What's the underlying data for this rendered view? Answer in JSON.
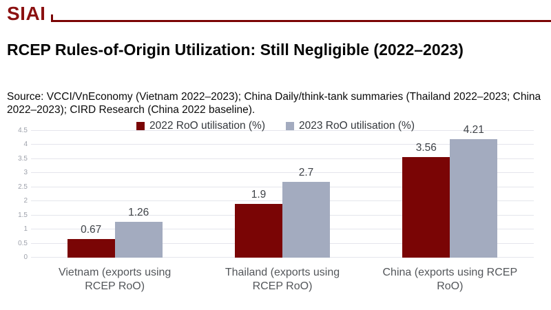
{
  "header": {
    "logo_text": "SIAI"
  },
  "title": "RCEP Rules-of-Origin Utilization: Still Negligible (2022–2023)",
  "source_note": "Source: VCCI/VnEconomy (Vietnam 2022–2023); China Daily/think-tank summaries (Thailand 2022–2023; China 2022–2023); CIRD Research (China 2022 baseline).",
  "colors": {
    "brand_red": "#8B1111",
    "rule_red": "#7A0404",
    "series_2022": "#7A0505",
    "series_2023": "#A3ABBF",
    "gridline": "#E4E5EC",
    "tick_label": "#9DA1AB",
    "value_label": "#3E4247",
    "category_label": "#53565A"
  },
  "chart_data": {
    "type": "bar",
    "title": "RCEP Rules-of-Origin Utilization: Still Negligible (2022–2023)",
    "categories": [
      "Vietnam (exports using RCEP RoO)",
      "Thailand (exports using RCEP RoO)",
      "China (exports using RCEP RoO)"
    ],
    "series": [
      {
        "name": "2022 RoO utilisation (%)",
        "color": "#7A0505",
        "values": [
          0.67,
          1.9,
          3.56
        ],
        "labels": [
          "0.67",
          "1.9",
          "3.56"
        ]
      },
      {
        "name": "2023 RoO utilisation (%)",
        "color": "#A3ABBF",
        "values": [
          1.26,
          2.7,
          4.21
        ],
        "labels": [
          "1.26",
          "2.7",
          "4.21"
        ]
      }
    ],
    "xlabel": "",
    "ylabel": "",
    "ylim": [
      0,
      4.5
    ],
    "ytick_step": 0.5,
    "grid": true,
    "legend_position": "top"
  }
}
